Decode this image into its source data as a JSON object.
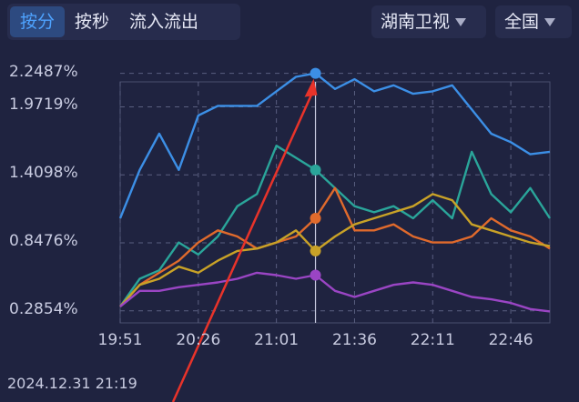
{
  "tabs": [
    {
      "label": "按分",
      "active": true
    },
    {
      "label": "按秒",
      "active": false
    },
    {
      "label": "流入流出",
      "active": false
    }
  ],
  "channel_dropdown": {
    "label": "湖南卫视",
    "icon": "caret-down-icon"
  },
  "region_dropdown": {
    "label": "全国",
    "icon": "caret-down-icon"
  },
  "timestamp": "2024.12.31 21:19",
  "chart_data": {
    "type": "line",
    "x": [
      "19:51",
      "20:00",
      "20:10",
      "20:20",
      "20:26",
      "20:35",
      "20:45",
      "20:55",
      "21:01",
      "21:10",
      "21:19",
      "21:28",
      "21:36",
      "21:45",
      "21:55",
      "22:05",
      "22:11",
      "22:20",
      "22:30",
      "22:40",
      "22:46",
      "22:55",
      "23:00"
    ],
    "x_tick_labels": [
      "19:51",
      "20:26",
      "21:01",
      "21:36",
      "22:11",
      "22:46"
    ],
    "y_tick_labels": [
      "2.2487%",
      "1.9719%",
      "1.4098%",
      "0.8476%",
      "0.2854%"
    ],
    "ylim": [
      0.1854,
      2.3287
    ],
    "grid": true,
    "highlight_x": "21:19",
    "series": [
      {
        "color": "#3c8fe6",
        "values": [
          1.05,
          1.45,
          1.75,
          1.45,
          1.9,
          1.98,
          1.98,
          1.98,
          2.1,
          2.22,
          2.2487,
          2.12,
          2.2,
          2.1,
          2.15,
          2.08,
          2.1,
          2.15,
          1.95,
          1.75,
          1.68,
          1.58,
          1.6
        ]
      },
      {
        "color": "#2aa59a",
        "values": [
          0.32,
          0.55,
          0.62,
          0.85,
          0.75,
          0.9,
          1.15,
          1.25,
          1.65,
          1.55,
          1.45,
          1.3,
          1.15,
          1.1,
          1.15,
          1.05,
          1.2,
          1.05,
          1.6,
          1.25,
          1.1,
          1.3,
          1.05
        ]
      },
      {
        "color": "#e06a2c",
        "values": [
          0.32,
          0.5,
          0.6,
          0.7,
          0.85,
          0.95,
          0.9,
          0.8,
          0.85,
          0.9,
          1.05,
          1.3,
          0.95,
          0.95,
          1.0,
          0.9,
          0.85,
          0.85,
          0.9,
          1.05,
          0.95,
          0.9,
          0.8
        ]
      },
      {
        "color": "#c9a227",
        "values": [
          0.32,
          0.5,
          0.55,
          0.65,
          0.6,
          0.7,
          0.78,
          0.8,
          0.85,
          0.95,
          0.78,
          0.9,
          1.0,
          1.05,
          1.1,
          1.15,
          1.25,
          1.2,
          1.0,
          0.95,
          0.9,
          0.85,
          0.82
        ]
      },
      {
        "color": "#9a45c4",
        "values": [
          0.32,
          0.45,
          0.45,
          0.48,
          0.5,
          0.52,
          0.55,
          0.6,
          0.58,
          0.55,
          0.58,
          0.45,
          0.4,
          0.45,
          0.5,
          0.52,
          0.5,
          0.45,
          0.4,
          0.38,
          0.35,
          0.3,
          0.28
        ]
      }
    ]
  }
}
